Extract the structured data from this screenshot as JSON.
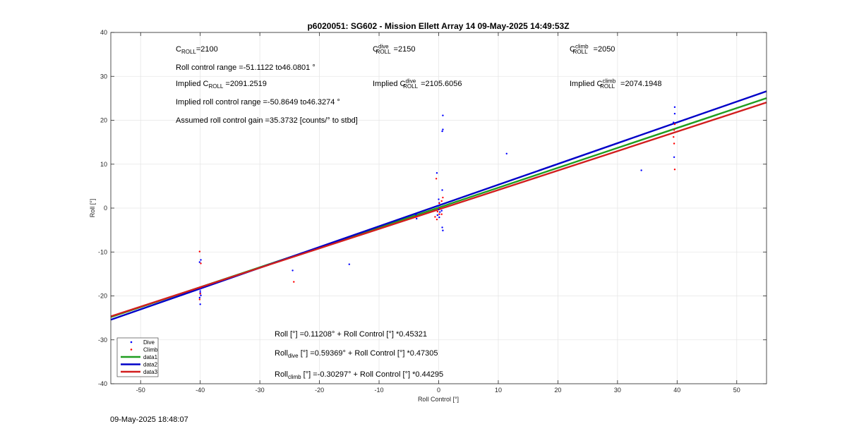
{
  "chart_data": {
    "type": "scatter",
    "title": "p6020051: SG602 - Mission Ellett Array 14 09-May-2025 14:49:53Z",
    "xlabel": "Roll Control [°]",
    "ylabel": "Roll [°]",
    "xlim": [
      -55,
      55
    ],
    "ylim": [
      -40,
      40
    ],
    "xticks": [
      -50,
      -40,
      -30,
      -20,
      -10,
      0,
      10,
      20,
      30,
      40,
      50
    ],
    "yticks": [
      -40,
      -30,
      -20,
      -10,
      0,
      10,
      20,
      30,
      40
    ],
    "grid": true,
    "legend_position": "bottom-left",
    "series": [
      {
        "name": "Dive",
        "kind": "points",
        "color": "#0000ff",
        "points": [
          [
            -39.9,
            -11.8
          ],
          [
            -40.1,
            -12.3
          ],
          [
            -40.0,
            -18.4
          ],
          [
            -40.0,
            -18.9
          ],
          [
            -40.0,
            -19.3
          ],
          [
            -39.9,
            -19.9
          ],
          [
            -40.1,
            -20.4
          ],
          [
            -40.0,
            -21.9
          ],
          [
            -24.5,
            -14.2
          ],
          [
            -15.0,
            -12.8
          ],
          [
            -3.8,
            -1.5
          ],
          [
            -3.7,
            -2.4
          ],
          [
            -0.3,
            8.0
          ],
          [
            0.0,
            2.0
          ],
          [
            0.1,
            1.2
          ],
          [
            -0.1,
            0.5
          ],
          [
            0.0,
            -0.3
          ],
          [
            0.2,
            -0.9
          ],
          [
            -0.2,
            -1.6
          ],
          [
            0.1,
            -2.1
          ],
          [
            0.5,
            -0.6
          ],
          [
            0.6,
            4.1
          ],
          [
            0.7,
            17.9
          ],
          [
            0.6,
            17.5
          ],
          [
            0.7,
            21.1
          ],
          [
            0.6,
            -4.4
          ],
          [
            0.7,
            -5.1
          ],
          [
            11.4,
            12.4
          ],
          [
            34.0,
            8.6
          ],
          [
            39.6,
            23.0
          ],
          [
            39.6,
            21.5
          ],
          [
            39.4,
            19.5
          ],
          [
            39.5,
            11.6
          ]
        ]
      },
      {
        "name": "Climb",
        "kind": "points",
        "color": "#ff0000",
        "points": [
          [
            -40.1,
            -9.9
          ],
          [
            -39.9,
            -12.6
          ],
          [
            -40.0,
            -18.1
          ],
          [
            -40.0,
            -19.5
          ],
          [
            -40.1,
            -20.8
          ],
          [
            -24.3,
            -16.8
          ],
          [
            -3.8,
            -2.0
          ],
          [
            -0.4,
            6.7
          ],
          [
            0.1,
            1.1
          ],
          [
            0.2,
            -0.1
          ],
          [
            -0.2,
            -0.8
          ],
          [
            0.1,
            -1.4
          ],
          [
            -0.6,
            -2.0
          ],
          [
            -0.3,
            -2.6
          ],
          [
            0.5,
            1.6
          ],
          [
            0.7,
            2.4
          ],
          [
            0.5,
            -1.4
          ],
          [
            39.6,
            19.1
          ],
          [
            39.5,
            17.8
          ],
          [
            39.4,
            16.2
          ],
          [
            39.5,
            14.7
          ],
          [
            39.6,
            8.8
          ]
        ]
      },
      {
        "name": "data1",
        "kind": "line",
        "color": "#1f9e1f",
        "intercept": 0.11208,
        "slope": 0.45321
      },
      {
        "name": "data2",
        "kind": "line",
        "color": "#0000c8",
        "intercept": 0.59369,
        "slope": 0.47305
      },
      {
        "name": "data3",
        "kind": "line",
        "color": "#d21e1e",
        "intercept": -0.30297,
        "slope": 0.44295
      }
    ]
  },
  "annotations": {
    "c_roll_base": "C",
    "c_roll_sub": "ROLL",
    "c_roll_val": "=2100",
    "c_dive_base": "C",
    "c_dive_sup": "dive",
    "c_dive_sub": "ROLL",
    "c_dive_val": "=2150",
    "c_climb_base": "C",
    "c_climb_sup": "climb",
    "c_climb_sub": "ROLL",
    "c_climb_val": "=2050",
    "roll_range": "Roll control range =-51.1122 to46.0801 °",
    "implied_c_prefix": "Implied C",
    "implied_c_sub": "ROLL",
    "implied_c_val": " =2091.2519",
    "implied_dive_prefix": "Implied C",
    "implied_dive_sup": "dive",
    "implied_dive_sub": "ROLL",
    "implied_dive_val": "=2105.6056",
    "implied_climb_prefix": "Implied C",
    "implied_climb_sup": "climb",
    "implied_climb_sub": "ROLL",
    "implied_climb_val": "=2074.1948",
    "implied_range": "Implied roll control range =-50.8649 to46.3274 °",
    "assumed_gain": "Assumed roll control gain =35.3732 [counts/° to stbd]",
    "fit_all": "Roll [°] =0.11208° + Roll Control [°] *0.45321",
    "fit_dive_base": "Roll",
    "fit_dive_sub": "dive",
    "fit_dive_rest": " [°] =0.59369° + Roll Control [°] *0.47305",
    "fit_climb_base": "Roll",
    "fit_climb_sub": "climb",
    "fit_climb_rest": " [°] =-0.30297° + Roll Control [°] *0.44295"
  },
  "footer": {
    "timestamp": "09-May-2025 18:48:07"
  }
}
